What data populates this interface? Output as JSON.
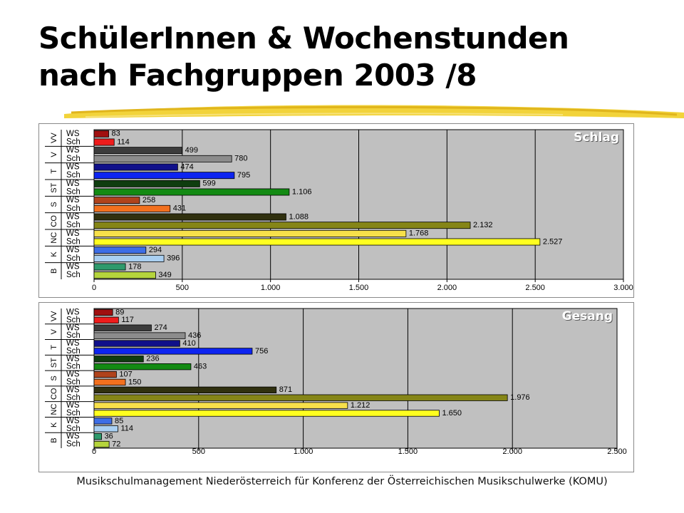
{
  "slide": {
    "title_line1": "SchülerInnen & Wochenstunden",
    "title_line2": "nach Fachgruppen 2003 /8",
    "footer": "Musikschulmanagement Niederösterreich für Konferenz der Österreichischen Musikschulwerke (KOMU)"
  },
  "chart_data": [
    {
      "type": "bar",
      "orientation": "horizontal",
      "title": "Schlag",
      "groups": [
        "VV",
        "V",
        "T",
        "ST",
        "S",
        "CO",
        "NC",
        "K",
        "B"
      ],
      "categories": [
        "WS",
        "Sch",
        "WS",
        "Sch",
        "WS",
        "Sch",
        "WS",
        "Sch",
        "WS",
        "Sch",
        "WS",
        "Sch",
        "WS",
        "Sch",
        "WS",
        "Sch",
        "WS",
        "Sch"
      ],
      "values": [
        83,
        114,
        499,
        780,
        474,
        795,
        599,
        1106,
        258,
        431,
        1088,
        2132,
        1768,
        2527,
        294,
        396,
        178,
        349
      ],
      "value_labels": [
        "83",
        "114",
        "499",
        "780",
        "474",
        "795",
        "599",
        "1.106",
        "258",
        "431",
        "1.088",
        "2.132",
        "1.768",
        "2.527",
        "294",
        "396",
        "178",
        "349"
      ],
      "colors": [
        "#a01010",
        "#ee1c1c",
        "#3c3c3c",
        "#8c8c8c",
        "#10108a",
        "#0d24f0",
        "#0f3d0f",
        "#138a13",
        "#b0431c",
        "#f2701e",
        "#30300f",
        "#858517",
        "#f7e04a",
        "#ffff1f",
        "#3d6ee6",
        "#aad0f2",
        "#2e9a6c",
        "#b5d43c"
      ],
      "xlim": [
        0,
        3000
      ],
      "xticks": [
        "0",
        "500",
        "1.000",
        "1.500",
        "2.000",
        "2.500",
        "3.000"
      ],
      "grid": true,
      "plot_background": "#c0c0c0"
    },
    {
      "type": "bar",
      "orientation": "horizontal",
      "title": "Gesang",
      "groups": [
        "VV",
        "V",
        "T",
        "ST",
        "S",
        "CO",
        "NC",
        "K",
        "B"
      ],
      "categories": [
        "WS",
        "Sch",
        "WS",
        "Sch",
        "WS",
        "Sch",
        "WS",
        "Sch",
        "WS",
        "Sch",
        "WS",
        "Sch",
        "WS",
        "Sch",
        "WS",
        "Sch",
        "WS",
        "Sch"
      ],
      "values": [
        89,
        117,
        274,
        436,
        410,
        756,
        236,
        463,
        107,
        150,
        871,
        1976,
        1212,
        1650,
        85,
        114,
        36,
        72
      ],
      "value_labels": [
        "89",
        "117",
        "274",
        "436",
        "410",
        "756",
        "236",
        "463",
        "107",
        "150",
        "871",
        "1.976",
        "1.212",
        "1.650",
        "85",
        "114",
        "36",
        "72"
      ],
      "colors": [
        "#a01010",
        "#ee1c1c",
        "#3c3c3c",
        "#8c8c8c",
        "#10108a",
        "#0d24f0",
        "#0f3d0f",
        "#138a13",
        "#b0431c",
        "#f2701e",
        "#30300f",
        "#858517",
        "#f7e04a",
        "#ffff1f",
        "#3d6ee6",
        "#aad0f2",
        "#2e9a6c",
        "#b5d43c"
      ],
      "xlim": [
        0,
        2500
      ],
      "xticks": [
        "0",
        "500",
        "1.000",
        "1.500",
        "2.000",
        "2.500"
      ],
      "grid": true,
      "plot_background": "#c0c0c0"
    }
  ]
}
